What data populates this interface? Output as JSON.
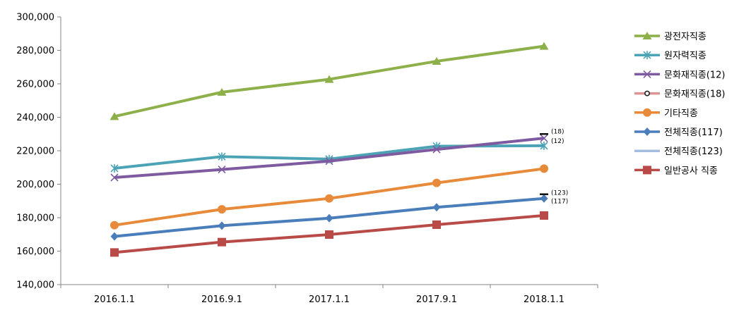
{
  "chart_data": {
    "type": "line",
    "categories": [
      "2016.1.1",
      "2016.9.1",
      "2017.1.1",
      "2017.9.1",
      "2018.1.1"
    ],
    "ylim": [
      140000,
      300000
    ],
    "yticks": [
      "300,000",
      "280,000",
      "260,000",
      "240,000",
      "220,000",
      "200,000",
      "180,000",
      "160,000",
      "140,000"
    ],
    "ytick_values": [
      300000,
      280000,
      260000,
      240000,
      220000,
      200000,
      180000,
      160000,
      140000
    ],
    "grid": false,
    "legend_position": "right",
    "series": [
      {
        "name": "광전자직종",
        "color": "#8DB04A",
        "marker": "triangle",
        "values": [
          240500,
          255000,
          262700,
          273500,
          282500
        ]
      },
      {
        "name": "원자력직종",
        "color": "#4BA3B5",
        "marker": "star",
        "values": [
          209500,
          216500,
          215000,
          222700,
          223000
        ]
      },
      {
        "name": "문화재직종(12)",
        "color": "#7E5BA0",
        "marker": "cross",
        "values": [
          204000,
          208800,
          213800,
          220800,
          227500
        ]
      },
      {
        "name": "문화재직종(18)",
        "color": "#D89594",
        "marker": "circle-small",
        "values": [
          null,
          null,
          null,
          null,
          230000
        ]
      },
      {
        "name": "기타직종",
        "color": "#E78A3A",
        "marker": "circle",
        "values": [
          175500,
          185000,
          191500,
          200800,
          209300
        ]
      },
      {
        "name": "전체직종(117)",
        "color": "#4A7EBB",
        "marker": "diamond",
        "values": [
          168800,
          175200,
          179700,
          186200,
          191500
        ]
      },
      {
        "name": "전체직종(123)",
        "color": "#A4BDE0",
        "marker": "dash",
        "values": [
          null,
          null,
          null,
          null,
          194000
        ]
      },
      {
        "name": "일반공사 직종",
        "color": "#B84A47",
        "marker": "square",
        "values": [
          159200,
          165400,
          169900,
          175800,
          181300
        ]
      }
    ],
    "annotations": [
      {
        "text": "(18)",
        "category": "2018.1.1",
        "y": 231500
      },
      {
        "text": "(12)",
        "category": "2018.1.1",
        "y": 226000
      },
      {
        "text": "(123)",
        "category": "2018.1.1",
        "y": 195000
      },
      {
        "text": "(117)",
        "category": "2018.1.1",
        "y": 190000
      }
    ],
    "reference_markers": [
      {
        "category": "2018.1.1",
        "y": 230000
      },
      {
        "category": "2018.1.1",
        "y": 194000
      }
    ]
  }
}
